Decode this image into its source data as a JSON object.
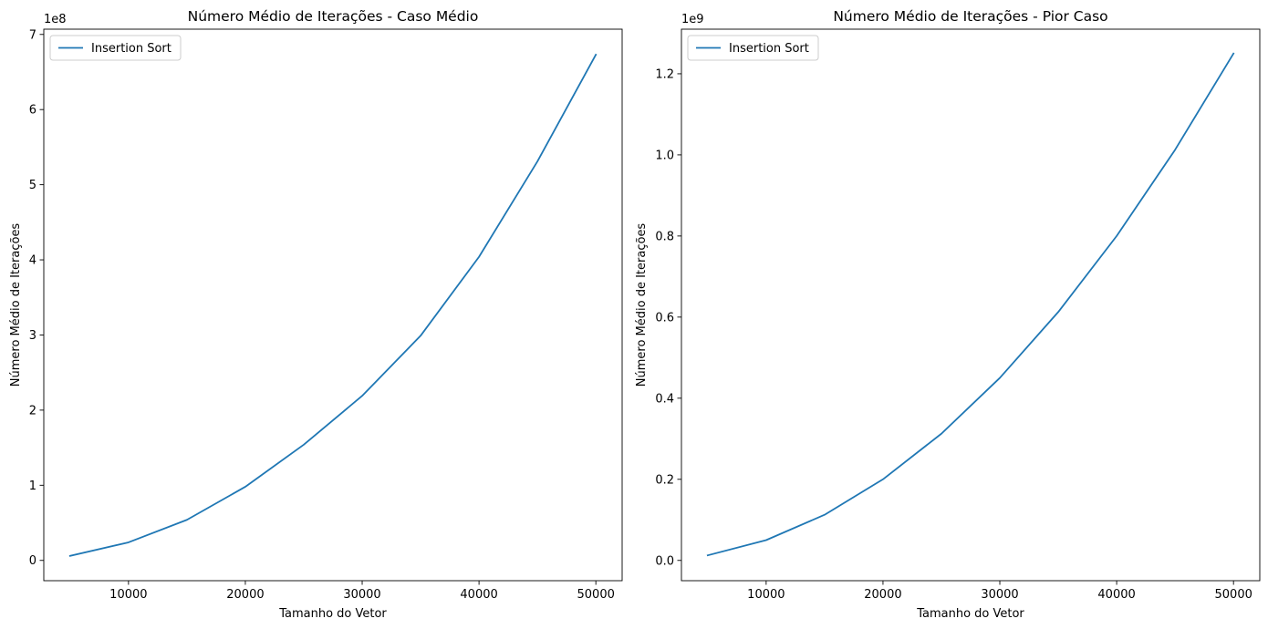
{
  "chart_data": [
    {
      "type": "line",
      "title": "Número Médio de Iterações - Caso Médio",
      "xlabel": "Tamanho do Vetor",
      "ylabel": "Número Médio de Iterações",
      "offset_label": "1e8",
      "xlim": [
        2750,
        52250
      ],
      "ylim": [
        -0.27,
        7.07
      ],
      "x_ticks": [
        10000,
        20000,
        30000,
        40000,
        50000
      ],
      "x_tick_labels": [
        "10000",
        "20000",
        "30000",
        "40000",
        "50000"
      ],
      "y_ticks": [
        0,
        1,
        2,
        3,
        4,
        5,
        6,
        7
      ],
      "y_tick_labels": [
        "0",
        "1",
        "2",
        "3",
        "4",
        "5",
        "6",
        "7"
      ],
      "grid": false,
      "legend": {
        "position": "upper-left",
        "entries": [
          "Insertion Sort"
        ]
      },
      "series": [
        {
          "name": "Insertion Sort",
          "color": "#1f77b4",
          "x": [
            5000,
            10000,
            15000,
            20000,
            25000,
            30000,
            35000,
            40000,
            45000,
            50000
          ],
          "values": [
            0.06,
            0.24,
            0.54,
            0.98,
            1.54,
            2.19,
            2.99,
            4.04,
            5.31,
            6.73
          ]
        }
      ]
    },
    {
      "type": "line",
      "title": "Número Médio de Iterações - Pior Caso",
      "xlabel": "Tamanho do Vetor",
      "ylabel": "Número Médio de Iterações",
      "offset_label": "1e9",
      "xlim": [
        2750,
        52250
      ],
      "ylim": [
        -0.05,
        1.31
      ],
      "x_ticks": [
        10000,
        20000,
        30000,
        40000,
        50000
      ],
      "x_tick_labels": [
        "10000",
        "20000",
        "30000",
        "40000",
        "50000"
      ],
      "y_ticks": [
        0.0,
        0.2,
        0.4,
        0.6,
        0.8,
        1.0,
        1.2
      ],
      "y_tick_labels": [
        "0.0",
        "0.2",
        "0.4",
        "0.6",
        "0.8",
        "1.0",
        "1.2"
      ],
      "grid": false,
      "legend": {
        "position": "upper-left",
        "entries": [
          "Insertion Sort"
        ]
      },
      "series": [
        {
          "name": "Insertion Sort",
          "color": "#1f77b4",
          "x": [
            5000,
            10000,
            15000,
            20000,
            25000,
            30000,
            35000,
            40000,
            45000,
            50000
          ],
          "values": [
            0.0125,
            0.05,
            0.1125,
            0.2,
            0.3125,
            0.45,
            0.6125,
            0.8,
            1.0125,
            1.25
          ]
        }
      ]
    }
  ]
}
